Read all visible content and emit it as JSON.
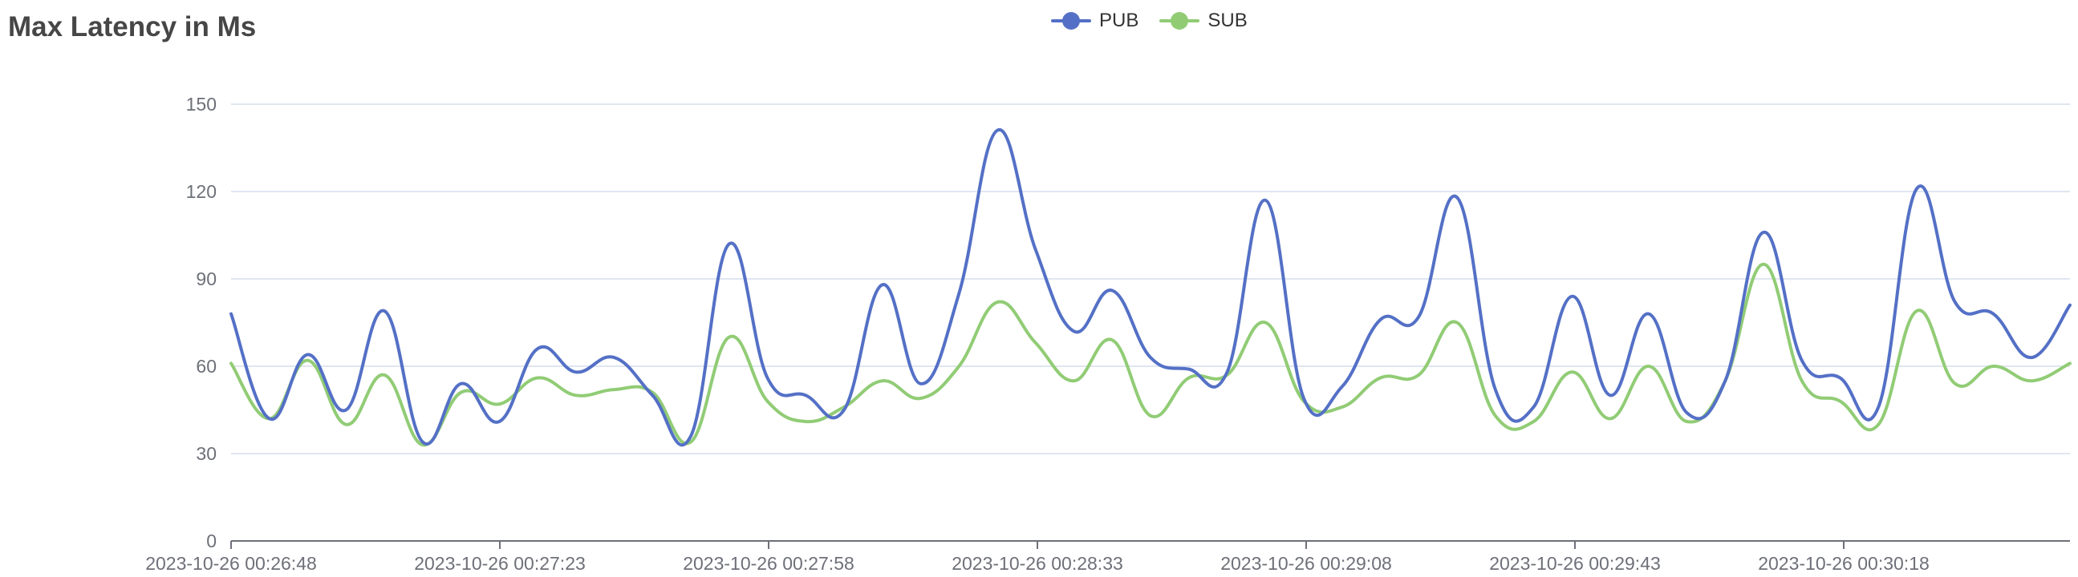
{
  "chart_data": {
    "type": "line",
    "title": "Max Latency in Ms",
    "xlabel": "",
    "ylabel": "",
    "ylim": [
      0,
      150
    ],
    "yticks": [
      0,
      30,
      60,
      90,
      120,
      150
    ],
    "grid": true,
    "legend_position": "top-center",
    "x_tick_labels": [
      "2023-10-26 00:26:48",
      "2023-10-26 00:27:23",
      "2023-10-26 00:27:58",
      "2023-10-26 00:28:33",
      "2023-10-26 00:29:08",
      "2023-10-26 00:29:43",
      "2023-10-26 00:30:18"
    ],
    "series": [
      {
        "name": "PUB",
        "color": "#5470c6",
        "values": [
          78,
          42,
          64,
          45,
          79,
          34,
          54,
          41,
          66,
          58,
          63,
          50,
          36,
          102,
          56,
          50,
          45,
          88,
          54,
          85,
          141,
          100,
          72,
          86,
          63,
          59,
          58,
          117,
          49,
          53,
          76,
          77,
          118,
          52,
          46,
          84,
          50,
          78,
          44,
          55,
          106,
          62,
          56,
          46,
          121,
          82,
          78,
          63,
          81
        ]
      },
      {
        "name": "SUB",
        "color": "#91cc75",
        "values": [
          61,
          42,
          62,
          40,
          57,
          33,
          51,
          47,
          56,
          50,
          52,
          51,
          34,
          70,
          48,
          41,
          46,
          55,
          49,
          60,
          82,
          68,
          55,
          69,
          43,
          56,
          57,
          75,
          48,
          46,
          56,
          57,
          75,
          43,
          41,
          58,
          42,
          60,
          41,
          55,
          95,
          55,
          48,
          40,
          79,
          54,
          60,
          55,
          61
        ]
      }
    ]
  }
}
